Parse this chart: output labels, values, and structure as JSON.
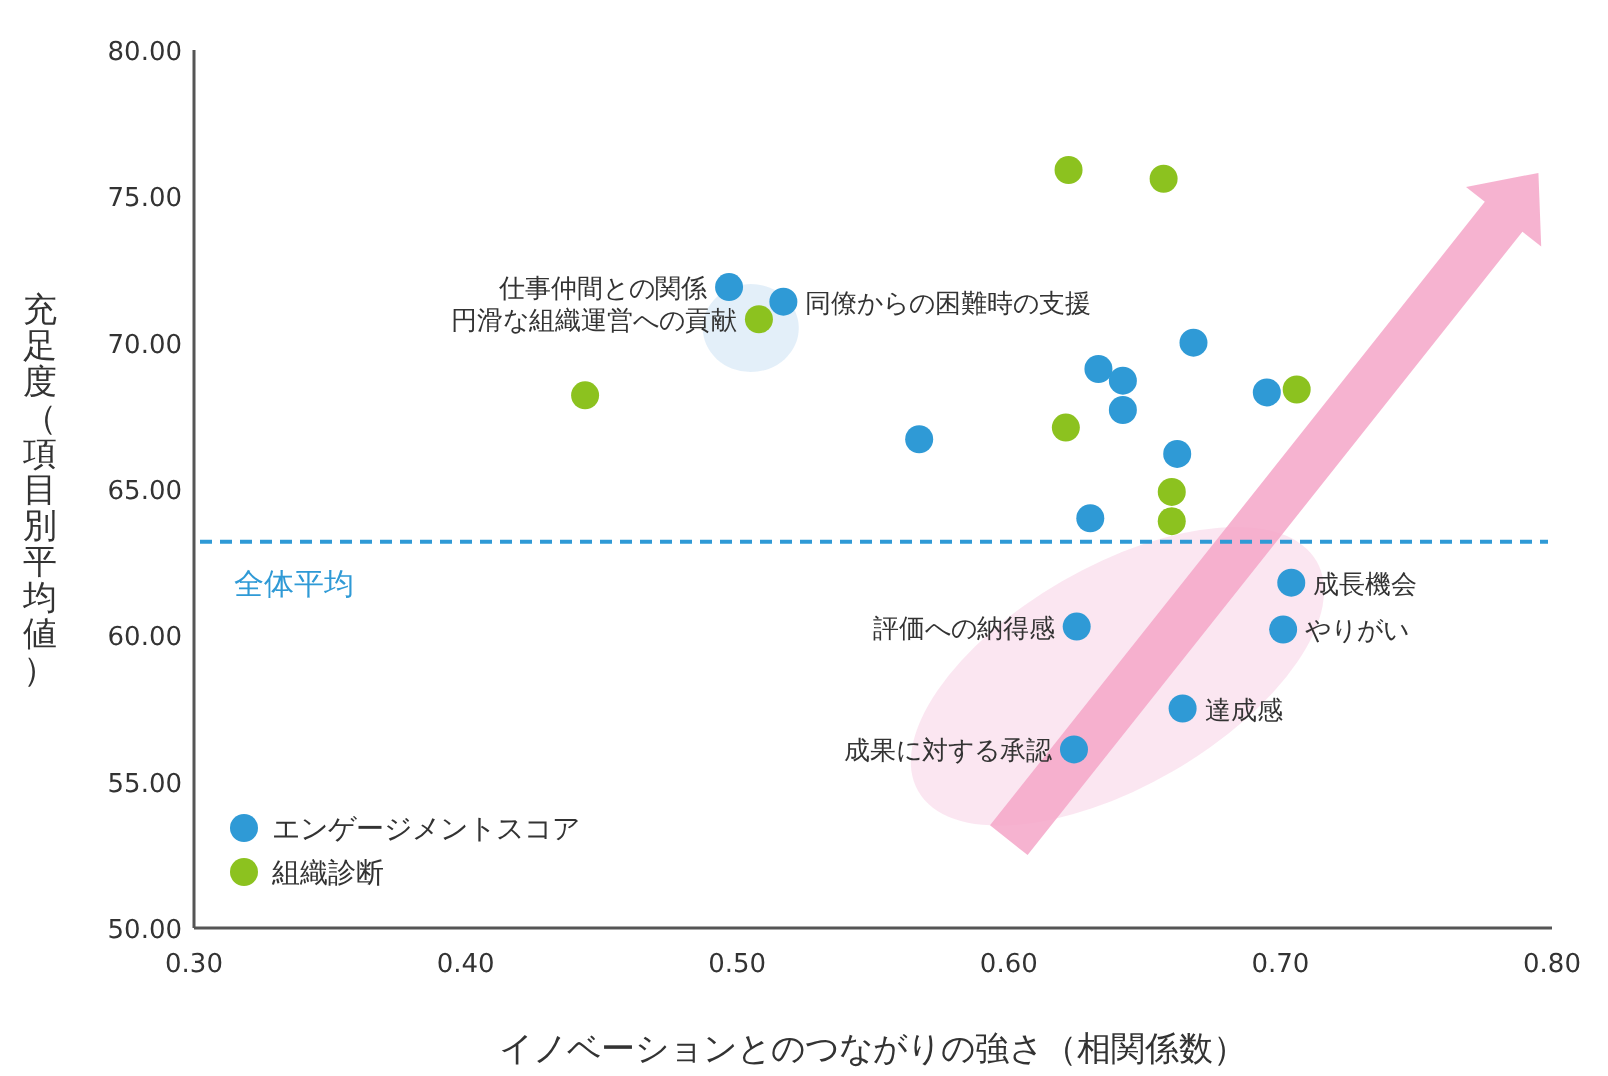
{
  "chart_data": {
    "type": "scatter",
    "xlabel": "イノベーションとのつながりの強さ（相関係数）",
    "ylabel": "充足度（項目別平均値）",
    "xlim": [
      0.3,
      0.8
    ],
    "ylim": [
      50,
      80
    ],
    "xticks": [
      {
        "value": 0.3,
        "label": "0.30"
      },
      {
        "value": 0.4,
        "label": "0.40"
      },
      {
        "value": 0.5,
        "label": "0.50"
      },
      {
        "value": 0.6,
        "label": "0.60"
      },
      {
        "value": 0.7,
        "label": "0.70"
      },
      {
        "value": 0.8,
        "label": "0.80"
      }
    ],
    "yticks": [
      {
        "value": 50,
        "label": "50.00"
      },
      {
        "value": 55,
        "label": "55.00"
      },
      {
        "value": 60,
        "label": "60.00"
      },
      {
        "value": 65,
        "label": "65.00"
      },
      {
        "value": 70,
        "label": "70.00"
      },
      {
        "value": 75,
        "label": "75.00"
      },
      {
        "value": 80,
        "label": "80.00"
      }
    ],
    "grid": false,
    "legend": "bottom left",
    "marker": "circle",
    "series": [
      {
        "name": "エンゲージメントスコア",
        "color": "#2f9ad6",
        "x": [
          0.497,
          0.517,
          0.567,
          0.633,
          0.642,
          0.642,
          0.668,
          0.695,
          0.662,
          0.63,
          0.704,
          0.701,
          0.625,
          0.664,
          0.624
        ],
        "values": [
          71.9,
          71.4,
          66.7,
          69.1,
          68.7,
          67.7,
          70.0,
          68.3,
          66.2,
          64.0,
          61.8,
          60.2,
          60.3,
          57.5,
          56.1
        ]
      },
      {
        "name": "組織診断",
        "color": "#8cc21f",
        "x": [
          0.508,
          0.444,
          0.622,
          0.657,
          0.621,
          0.706,
          0.66,
          0.66
        ],
        "values": [
          70.8,
          68.2,
          75.9,
          75.6,
          67.1,
          68.4,
          64.9,
          63.9
        ]
      }
    ],
    "ref_lines": [
      {
        "axis": "y",
        "value": 63.2,
        "label": "全体平均",
        "color": "#2f9ad6",
        "line_style": "dashed"
      }
    ],
    "annotations": [
      {
        "text": "仕事仲間との関係",
        "x": 0.497,
        "y": 71.9
      },
      {
        "text": "同僚からの困難時の支援",
        "x": 0.517,
        "y": 71.4
      },
      {
        "text": "円滑な組織運営への貢献",
        "x": 0.508,
        "y": 70.8
      },
      {
        "text": "成長機会",
        "x": 0.704,
        "y": 61.8
      },
      {
        "text": "やりがい",
        "x": 0.701,
        "y": 60.2
      },
      {
        "text": "評価への納得感",
        "x": 0.625,
        "y": 60.3
      },
      {
        "text": "達成感",
        "x": 0.664,
        "y": 57.5
      },
      {
        "text": "成果に対する承認",
        "x": 0.624,
        "y": 56.1
      }
    ]
  }
}
